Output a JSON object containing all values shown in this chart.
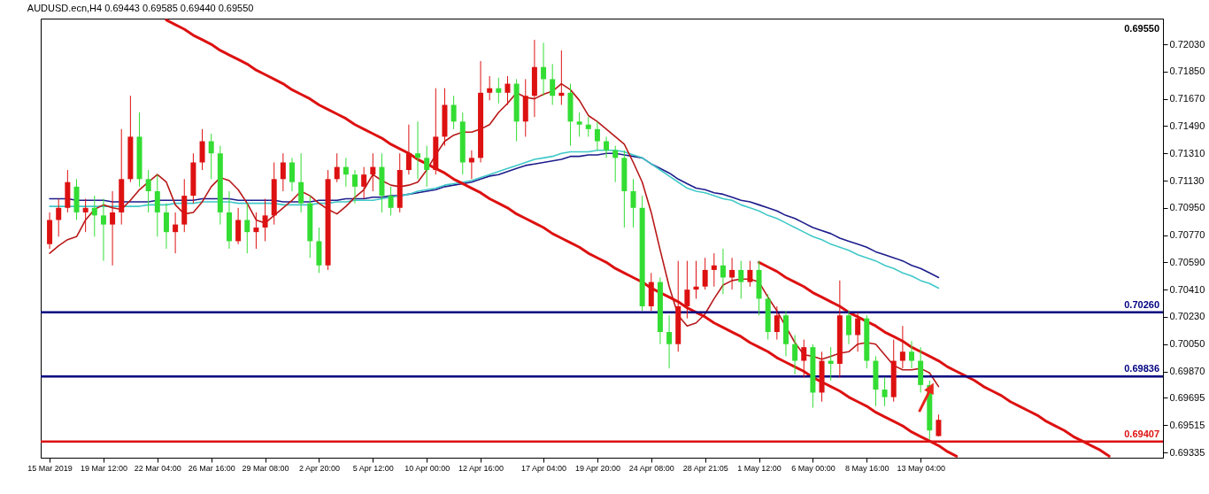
{
  "chart_data": {
    "type": "candlestick",
    "title": "AUDUSD.ecn,H4  0.69443 0.69585 0.69440 0.69550",
    "categories": [
      "15 Mar 2019",
      null,
      null,
      null,
      null,
      null,
      "19 Mar 12:00",
      null,
      null,
      null,
      null,
      null,
      "22 Mar 04:00",
      null,
      null,
      null,
      null,
      null,
      "26 Mar 16:00",
      null,
      null,
      null,
      null,
      null,
      "29 Mar 08:00",
      null,
      null,
      null,
      null,
      null,
      "2 Apr 20:00",
      null,
      null,
      null,
      null,
      null,
      "5 Apr 12:00",
      null,
      null,
      null,
      null,
      null,
      "10 Apr 00:00",
      null,
      null,
      null,
      null,
      null,
      "12 Apr 16:00",
      null,
      null,
      null,
      null,
      null,
      null,
      "17 Apr 04:00",
      null,
      null,
      null,
      null,
      null,
      "19 Apr 20:00",
      null,
      null,
      null,
      null,
      null,
      "24 Apr 08:00",
      null,
      null,
      null,
      null,
      null,
      "28 Apr 21:05",
      null,
      null,
      null,
      null,
      null,
      "1 May 12:00",
      null,
      null,
      null,
      null,
      null,
      "6 May 00:00",
      null,
      null,
      null,
      null,
      null,
      "8 May 16:00",
      null,
      null,
      null,
      null,
      null,
      "13 May 04:00",
      null,
      null,
      null,
      null,
      null,
      null,
      null,
      null,
      null,
      null,
      null,
      null,
      null,
      null,
      null,
      null,
      null,
      null,
      null,
      null,
      null,
      null,
      null,
      null,
      null,
      null
    ],
    "ohlc": [
      [
        0.7071,
        0.7092,
        0.7068,
        0.7087
      ],
      [
        0.7087,
        0.7101,
        0.7076,
        0.7095
      ],
      [
        0.7095,
        0.712,
        0.7092,
        0.7112
      ],
      [
        0.7109,
        0.7114,
        0.7087,
        0.7092
      ],
      [
        0.7092,
        0.7101,
        0.7079,
        0.7095
      ],
      [
        0.7095,
        0.7103,
        0.7076,
        0.709
      ],
      [
        0.709,
        0.7101,
        0.706,
        0.7084
      ],
      [
        0.7084,
        0.7106,
        0.7057,
        0.7092
      ],
      [
        0.7092,
        0.7147,
        0.7084,
        0.7114
      ],
      [
        0.7114,
        0.7169,
        0.7112,
        0.7142
      ],
      [
        0.7142,
        0.7158,
        0.7109,
        0.7114
      ],
      [
        0.7114,
        0.712,
        0.7092,
        0.7106
      ],
      [
        0.7106,
        0.7117,
        0.7076,
        0.7092
      ],
      [
        0.7092,
        0.7098,
        0.7068,
        0.7079
      ],
      [
        0.7079,
        0.7092,
        0.7065,
        0.7084
      ],
      [
        0.7084,
        0.7114,
        0.7079,
        0.7103
      ],
      [
        0.7103,
        0.7131,
        0.7098,
        0.7125
      ],
      [
        0.7125,
        0.7147,
        0.712,
        0.7139
      ],
      [
        0.7139,
        0.7144,
        0.7114,
        0.7131
      ],
      [
        0.7131,
        0.7136,
        0.7084,
        0.7092
      ],
      [
        0.7092,
        0.7106,
        0.7068,
        0.7073
      ],
      [
        0.7073,
        0.7095,
        0.7071,
        0.7087
      ],
      [
        0.7087,
        0.7098,
        0.7065,
        0.7079
      ],
      [
        0.7079,
        0.7092,
        0.7068,
        0.7082
      ],
      [
        0.7082,
        0.7101,
        0.7073,
        0.709
      ],
      [
        0.709,
        0.7125,
        0.7084,
        0.7114
      ],
      [
        0.7114,
        0.7131,
        0.7106,
        0.7125
      ],
      [
        0.7125,
        0.7128,
        0.7106,
        0.7112
      ],
      [
        0.7112,
        0.7131,
        0.7092,
        0.7098
      ],
      [
        0.7098,
        0.7103,
        0.7062,
        0.7073
      ],
      [
        0.7073,
        0.7082,
        0.7052,
        0.7057
      ],
      [
        0.7057,
        0.712,
        0.7054,
        0.7114
      ],
      [
        0.7114,
        0.7131,
        0.7112,
        0.7122
      ],
      [
        0.7122,
        0.7128,
        0.7109,
        0.7117
      ],
      [
        0.7117,
        0.712,
        0.7098,
        0.7109
      ],
      [
        0.7109,
        0.7122,
        0.7101,
        0.7117
      ],
      [
        0.7117,
        0.7131,
        0.7106,
        0.7122
      ],
      [
        0.7122,
        0.7131,
        0.7092,
        0.7103
      ],
      [
        0.7103,
        0.7109,
        0.709,
        0.7095
      ],
      [
        0.7095,
        0.7131,
        0.7092,
        0.712
      ],
      [
        0.712,
        0.715,
        0.7117,
        0.7131
      ],
      [
        0.7131,
        0.7152,
        0.7114,
        0.7128
      ],
      [
        0.7128,
        0.7136,
        0.7109,
        0.712
      ],
      [
        0.712,
        0.7174,
        0.7117,
        0.7142
      ],
      [
        0.7142,
        0.7174,
        0.7136,
        0.7163
      ],
      [
        0.7163,
        0.7169,
        0.7147,
        0.7152
      ],
      [
        0.7152,
        0.7158,
        0.7117,
        0.7125
      ],
      [
        0.7125,
        0.7133,
        0.7114,
        0.7128
      ],
      [
        0.7128,
        0.7192,
        0.7125,
        0.7171
      ],
      [
        0.7171,
        0.7182,
        0.7166,
        0.7174
      ],
      [
        0.7174,
        0.7181,
        0.7164,
        0.7171
      ],
      [
        0.7171,
        0.7182,
        0.7163,
        0.7177
      ],
      [
        0.7177,
        0.718,
        0.7139,
        0.7152
      ],
      [
        0.7152,
        0.718,
        0.7142,
        0.7169
      ],
      [
        0.7169,
        0.7206,
        0.7155,
        0.7188
      ],
      [
        0.7188,
        0.7204,
        0.7169,
        0.718
      ],
      [
        0.718,
        0.719,
        0.7163,
        0.7169
      ],
      [
        0.7169,
        0.7199,
        0.7163,
        0.7171
      ],
      [
        0.7171,
        0.7177,
        0.7136,
        0.7152
      ],
      [
        0.7152,
        0.7158,
        0.7142,
        0.715
      ],
      [
        0.715,
        0.7155,
        0.7142,
        0.7147
      ],
      [
        0.7147,
        0.7152,
        0.7133,
        0.7139
      ],
      [
        0.7139,
        0.7142,
        0.7128,
        0.7133
      ],
      [
        0.7133,
        0.7136,
        0.7112,
        0.7128
      ],
      [
        0.7128,
        0.7133,
        0.7082,
        0.7106
      ],
      [
        0.7106,
        0.7114,
        0.7082,
        0.7095
      ],
      [
        0.7095,
        0.7103,
        0.7027,
        0.703
      ],
      [
        0.703,
        0.7052,
        0.7027,
        0.7046
      ],
      [
        0.7046,
        0.7049,
        0.7005,
        0.7013
      ],
      [
        0.7013,
        0.7024,
        0.6989,
        0.7005
      ],
      [
        0.7005,
        0.706,
        0.7,
        0.703
      ],
      [
        0.703,
        0.706,
        0.7022,
        0.7041
      ],
      [
        0.7041,
        0.706,
        0.7035,
        0.7043
      ],
      [
        0.7043,
        0.7062,
        0.7041,
        0.7054
      ],
      [
        0.7054,
        0.7065,
        0.7043,
        0.7057
      ],
      [
        0.7057,
        0.7068,
        0.7038,
        0.7049
      ],
      [
        0.7049,
        0.7062,
        0.7041,
        0.7054
      ],
      [
        0.7054,
        0.706,
        0.7035,
        0.7046
      ],
      [
        0.7046,
        0.706,
        0.7043,
        0.7054
      ],
      [
        0.7054,
        0.706,
        0.7024,
        0.7035
      ],
      [
        0.7035,
        0.7038,
        0.7008,
        0.7013
      ],
      [
        0.7013,
        0.703,
        0.7008,
        0.7024
      ],
      [
        0.7024,
        0.7027,
        0.6997,
        0.7005
      ],
      [
        0.7005,
        0.7011,
        0.6985,
        0.6994
      ],
      [
        0.6994,
        0.7008,
        0.6983,
        0.7003
      ],
      [
        0.7003,
        0.7005,
        0.6963,
        0.6973
      ],
      [
        0.6973,
        0.7,
        0.6967,
        0.6994
      ],
      [
        0.6994,
        0.7003,
        0.6981,
        0.6992
      ],
      [
        0.6992,
        0.7047,
        0.6983,
        0.7024
      ],
      [
        0.7024,
        0.7027,
        0.7005,
        0.7011
      ],
      [
        0.7011,
        0.7026,
        0.7,
        0.7022
      ],
      [
        0.7022,
        0.7024,
        0.6989,
        0.6994
      ],
      [
        0.6994,
        0.6997,
        0.6964,
        0.6975
      ],
      [
        0.6975,
        0.6983,
        0.6964,
        0.697
      ],
      [
        0.697,
        0.7008,
        0.6967,
        0.6994
      ],
      [
        0.6994,
        0.7017,
        0.6989,
        0.7
      ],
      [
        0.7,
        0.7007,
        0.6989,
        0.6994
      ],
      [
        0.6994,
        0.7003,
        0.6973,
        0.6978
      ],
      [
        0.6978,
        0.6981,
        0.6942,
        0.6948
      ],
      [
        0.69443,
        0.69585,
        0.6944,
        0.6955
      ],
      null,
      null,
      null,
      null,
      null,
      null,
      null,
      null,
      null,
      null,
      null,
      null,
      null,
      null,
      null,
      null,
      null,
      null,
      null,
      null,
      null,
      null,
      null,
      null
    ],
    "colors": [
      "#dd1111",
      "#dd1111",
      "#dd1111",
      "#33dd33",
      "#dd1111",
      "#33dd33",
      "#33dd33",
      "#dd1111",
      "#dd1111",
      "#dd1111",
      "#33dd33",
      "#33dd33",
      "#33dd33",
      "#33dd33",
      "#dd1111",
      "#dd1111",
      "#dd1111",
      "#dd1111",
      "#33dd33",
      "#33dd33",
      "#33dd33",
      "#dd1111",
      "#33dd33",
      "#dd1111",
      "#dd1111",
      "#dd1111",
      "#dd1111",
      "#33dd33",
      "#33dd33",
      "#33dd33",
      "#33dd33",
      "#dd1111",
      "#dd1111",
      "#33dd33",
      "#33dd33",
      "#dd1111",
      "#dd1111",
      "#33dd33",
      "#33dd33",
      "#dd1111",
      "#dd1111",
      "#33dd33",
      "#33dd33",
      "#dd1111",
      "#dd1111",
      "#33dd33",
      "#33dd33",
      "#dd1111",
      "#dd1111",
      "#dd1111",
      "#33dd33",
      "#dd1111",
      "#33dd33",
      "#dd1111",
      "#dd1111",
      "#33dd33",
      "#33dd33",
      "#dd1111",
      "#33dd33",
      "#33dd33",
      "#33dd33",
      "#33dd33",
      "#33dd33",
      "#33dd33",
      "#33dd33",
      "#33dd33",
      "#33dd33",
      "#dd1111",
      "#33dd33",
      "#33dd33",
      "#dd1111",
      "#dd1111",
      "#dd1111",
      "#dd1111",
      "#dd1111",
      "#33dd33",
      "#dd1111",
      "#33dd33",
      "#dd1111",
      "#33dd33",
      "#33dd33",
      "#dd1111",
      "#33dd33",
      "#33dd33",
      "#dd1111",
      "#33dd33",
      "#dd1111",
      "#33dd33",
      "#dd1111",
      "#33dd33",
      "#dd1111",
      "#33dd33",
      "#33dd33",
      "#33dd33",
      "#dd1111",
      "#dd1111",
      "#33dd33",
      "#33dd33",
      "#33dd33",
      "#dd1111",
      null,
      null,
      null,
      null,
      null,
      null,
      null,
      null,
      null,
      null,
      null,
      null,
      null,
      null,
      null,
      null,
      null,
      null,
      null,
      null,
      null,
      null,
      null,
      null
    ],
    "series": [
      {
        "type": "line",
        "color": "#1c1c8c",
        "values": [
          0.7101,
          0.7101,
          0.7101,
          0.71,
          0.71,
          0.71,
          0.71,
          0.7099,
          0.7099,
          0.7099,
          0.7099,
          0.7099,
          0.71,
          0.71,
          0.71,
          0.71,
          0.71,
          0.7101,
          0.7101,
          0.7101,
          0.7101,
          0.71,
          0.71,
          0.71,
          0.71,
          0.71,
          0.7099,
          0.7099,
          0.7099,
          0.7099,
          0.71,
          0.71,
          0.71,
          0.7101,
          0.7101,
          0.7101,
          0.7102,
          0.7102,
          0.7103,
          0.7103,
          0.7104,
          0.7105,
          0.7106,
          0.7107,
          0.7109,
          0.711,
          0.7111,
          0.7112,
          0.7114,
          0.7116,
          0.7117,
          0.7119,
          0.7121,
          0.7123,
          0.7124,
          0.7125,
          0.7126,
          0.7127,
          0.7129,
          0.7129,
          0.713,
          0.713,
          0.7131,
          0.7131,
          0.713,
          0.7129,
          0.7128,
          0.7124,
          0.7121,
          0.7118,
          0.7114,
          0.7111,
          0.7108,
          0.7107,
          0.7105,
          0.7104,
          0.7102,
          0.71,
          0.7099,
          0.7097,
          0.7095,
          0.7093,
          0.709,
          0.7088,
          0.7085,
          0.7082,
          0.708,
          0.7078,
          0.7075,
          0.7073,
          0.7071,
          0.7069,
          0.7066,
          0.7064,
          0.7062,
          0.706,
          0.7057,
          0.7055,
          0.7052,
          0.7049,
          null,
          null,
          null,
          null,
          null,
          null,
          null,
          null,
          null,
          null,
          null,
          null,
          null,
          null,
          null,
          null,
          null,
          null,
          null,
          null,
          null,
          null,
          null,
          null
        ]
      },
      {
        "type": "line",
        "color": "#40c8c8",
        "values": [
          0.7096,
          0.7096,
          0.7096,
          0.7096,
          0.7096,
          0.7096,
          0.7096,
          0.7096,
          0.7096,
          0.7096,
          0.7096,
          0.7097,
          0.7097,
          0.7097,
          0.7098,
          0.7098,
          0.7098,
          0.7099,
          0.7099,
          0.7099,
          0.7099,
          0.7098,
          0.7098,
          0.7098,
          0.7098,
          0.7098,
          0.7097,
          0.7097,
          0.7097,
          0.7097,
          0.7098,
          0.7098,
          0.7099,
          0.7099,
          0.71,
          0.71,
          0.71,
          0.7101,
          0.7102,
          0.7103,
          0.7104,
          0.7106,
          0.7107,
          0.7108,
          0.711,
          0.7111,
          0.7112,
          0.7113,
          0.7115,
          0.7117,
          0.7119,
          0.7121,
          0.7123,
          0.7125,
          0.7127,
          0.7128,
          0.7129,
          0.7131,
          0.7132,
          0.7132,
          0.7132,
          0.7133,
          0.7133,
          0.7133,
          0.7132,
          0.713,
          0.7128,
          0.7124,
          0.712,
          0.7116,
          0.7112,
          0.7108,
          0.7106,
          0.7105,
          0.7103,
          0.7101,
          0.71,
          0.7097,
          0.7095,
          0.7093,
          0.709,
          0.7088,
          0.7085,
          0.7082,
          0.7079,
          0.7076,
          0.7074,
          0.7071,
          0.7069,
          0.7067,
          0.7064,
          0.7062,
          0.706,
          0.7057,
          0.7055,
          0.7052,
          0.705,
          0.7047,
          0.7045,
          0.7042,
          null,
          null,
          null,
          null,
          null,
          null,
          null,
          null,
          null,
          null,
          null,
          null,
          null,
          null,
          null,
          null,
          null,
          null,
          null,
          null,
          null,
          null,
          null,
          null
        ]
      },
      {
        "type": "line",
        "color": "#b81818",
        "values": [
          0.7065,
          0.707,
          0.7074,
          0.7076,
          0.7087,
          0.7094,
          0.7097,
          0.7095,
          0.7094,
          0.71,
          0.7107,
          0.7112,
          0.7117,
          0.7112,
          0.7097,
          0.7091,
          0.7092,
          0.7099,
          0.7109,
          0.7115,
          0.7113,
          0.7107,
          0.7098,
          0.7087,
          0.7085,
          0.709,
          0.7095,
          0.71,
          0.7106,
          0.7103,
          0.7098,
          0.7094,
          0.7091,
          0.7096,
          0.7102,
          0.7107,
          0.7117,
          0.7113,
          0.711,
          0.7109,
          0.711,
          0.7112,
          0.712,
          0.713,
          0.7139,
          0.7143,
          0.7145,
          0.7145,
          0.7147,
          0.715,
          0.7158,
          0.7164,
          0.7171,
          0.7168,
          0.7167,
          0.717,
          0.7172,
          0.7177,
          0.7173,
          0.7166,
          0.7156,
          0.7152,
          0.7147,
          0.7142,
          0.7137,
          0.7125,
          0.7112,
          0.7092,
          0.7067,
          0.7043,
          0.7024,
          0.7017,
          0.7019,
          0.7025,
          0.7035,
          0.7044,
          0.7047,
          0.7048,
          0.7048,
          0.7046,
          0.7036,
          0.7027,
          null,
          0.7006,
          0.6998,
          0.6997,
          0.6995,
          0.6997,
          0.6999,
          0.7,
          0.7005,
          0.7006,
          0.7005,
          0.6998,
          0.6991,
          0.6988,
          0.6988,
          0.6989,
          0.6986,
          0.6977,
          null,
          null,
          null,
          null,
          null,
          null,
          null,
          null,
          null,
          null,
          null,
          null,
          null,
          null,
          null,
          null,
          null,
          null,
          null,
          null,
          null,
          null,
          null,
          null
        ]
      },
      {
        "type": "line",
        "color": "#dd1111",
        "values": [
          null,
          null,
          null,
          null,
          null,
          null,
          null,
          null,
          null,
          null,
          null,
          null,
          null,
          0.7219,
          0.7216,
          0.7213,
          0.7209,
          0.7206,
          0.7203,
          0.7199,
          0.7196,
          0.7193,
          0.719,
          0.7186,
          0.7183,
          0.718,
          0.7177,
          0.7173,
          0.717,
          0.7167,
          0.7163,
          0.716,
          0.7157,
          0.7154,
          0.715,
          0.7147,
          0.7144,
          0.7141,
          0.7137,
          0.7134,
          0.7131,
          0.7127,
          0.7124,
          0.7121,
          0.7118,
          0.7114,
          0.7111,
          0.7108,
          0.7105,
          0.7101,
          0.7098,
          0.7095,
          0.7091,
          0.7088,
          0.7085,
          0.7082,
          0.7078,
          0.7075,
          0.7072,
          0.7069,
          0.7065,
          0.7062,
          0.7059,
          0.7055,
          0.7052,
          0.7049,
          0.7046,
          0.7042,
          0.7039,
          0.7036,
          0.7033,
          0.7029,
          0.7026,
          0.7023,
          0.7019,
          0.7016,
          0.7013,
          0.701,
          0.7006,
          0.7003,
          0.7,
          0.6996,
          0.6993,
          0.699,
          0.6987,
          0.6983,
          0.698,
          0.6977,
          0.6974,
          0.697,
          0.6967,
          0.6964,
          0.696,
          0.6957,
          0.6954,
          0.6951,
          0.6947,
          0.6944,
          0.6941,
          0.6938,
          0.6934,
          0.6931,
          null,
          null,
          null,
          null,
          null,
          null,
          null,
          null,
          null,
          null,
          null,
          null,
          null,
          null,
          null,
          null,
          null,
          null,
          null,
          null,
          null,
          null
        ]
      },
      {
        "type": "line",
        "color": "#dd1111",
        "values": [
          null,
          null,
          null,
          null,
          null,
          null,
          null,
          null,
          null,
          null,
          null,
          null,
          null,
          null,
          null,
          null,
          null,
          null,
          null,
          null,
          null,
          null,
          null,
          null,
          null,
          null,
          null,
          null,
          null,
          null,
          null,
          null,
          null,
          null,
          null,
          null,
          null,
          null,
          null,
          null,
          null,
          null,
          null,
          null,
          null,
          null,
          null,
          null,
          null,
          null,
          null,
          null,
          null,
          null,
          null,
          null,
          null,
          null,
          null,
          null,
          null,
          null,
          null,
          null,
          null,
          null,
          null,
          null,
          null,
          null,
          null,
          null,
          null,
          null,
          null,
          null,
          null,
          null,
          null,
          0.7059,
          0.7056,
          0.7053,
          0.7049,
          0.7046,
          0.7043,
          0.7039,
          0.7036,
          0.7033,
          0.703,
          0.7026,
          0.7023,
          0.702,
          0.7017,
          0.7013,
          0.701,
          0.7007,
          0.7003,
          0.7,
          0.6997,
          0.6994,
          0.699,
          0.6987,
          0.6984,
          0.6981,
          0.6977,
          0.6974,
          0.6971,
          0.6967,
          0.6964,
          0.6961,
          0.6958,
          0.6954,
          0.6951,
          0.6948,
          0.6944,
          0.6941,
          0.6938,
          0.6935,
          0.6931,
          null,
          null,
          null,
          null,
          null
        ]
      }
    ],
    "ylim": [
      0.693,
      0.722
    ],
    "yticks": [
      {
        "value": 0.7203,
        "label": "0.72030"
      },
      {
        "value": 0.7185,
        "label": "0.71850"
      },
      {
        "value": 0.7167,
        "label": "0.71670"
      },
      {
        "value": 0.7149,
        "label": "0.71490"
      },
      {
        "value": 0.7131,
        "label": "0.71310"
      },
      {
        "value": 0.7113,
        "label": "0.71130"
      },
      {
        "value": 0.7095,
        "label": "0.70950"
      },
      {
        "value": 0.7077,
        "label": "0.70770"
      },
      {
        "value": 0.7059,
        "label": "0.70590"
      },
      {
        "value": 0.7041,
        "label": "0.70410"
      },
      {
        "value": 0.7023,
        "label": "0.70230"
      },
      {
        "value": 0.7005,
        "label": "0.70050"
      },
      {
        "value": 0.6987,
        "label": "0.69870"
      },
      {
        "value": 0.69695,
        "label": "0.69695"
      },
      {
        "value": 0.69515,
        "label": "0.69515"
      },
      {
        "value": 0.69335,
        "label": "0.69335"
      }
    ],
    "ref_lines": [
      {
        "axis": "y",
        "value": 0.7026,
        "label": "0.70260",
        "color": "#000080"
      },
      {
        "axis": "y",
        "value": 0.69836,
        "label": "0.69836",
        "color": "#000080"
      },
      {
        "axis": "y",
        "value": 0.69407,
        "label": "0.69407",
        "color": "#dd1111"
      }
    ],
    "annotations": [
      "0.69550"
    ]
  }
}
